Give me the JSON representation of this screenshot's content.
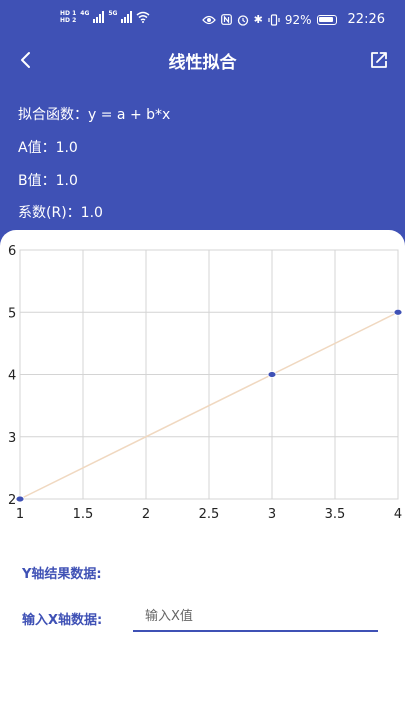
{
  "status_bar": {
    "sim1": "HD 1",
    "sim2": "HD 2",
    "net1": "4G",
    "net2": "5G",
    "battery_percent": "92%",
    "time": "22:26",
    "icons": [
      "wifi-icon",
      "eye-icon",
      "nfc-icon",
      "alarm-icon",
      "bluetooth-icon",
      "vibrate-icon",
      "battery-icon"
    ]
  },
  "header": {
    "title": "线性拟合",
    "back_icon": "chevron-left-icon",
    "share_icon": "share-export-icon"
  },
  "info": {
    "function_label": "拟合函数：",
    "function_value": "y = a + b*x",
    "a_label": "A值：",
    "a_value": "1.0",
    "b_label": "B值：",
    "b_value": "1.0",
    "r_label": "系数(R)：",
    "r_value": "1.0"
  },
  "chart_data": {
    "type": "scatter",
    "x": [
      1,
      3,
      4
    ],
    "y": [
      2,
      4,
      5
    ],
    "fit_line": {
      "x": [
        1,
        4
      ],
      "y": [
        2,
        5
      ]
    },
    "xlim": [
      1,
      4
    ],
    "ylim": [
      2,
      6
    ],
    "x_ticks": [
      "1",
      "1.5",
      "2",
      "2.5",
      "3",
      "3.5",
      "4"
    ],
    "y_ticks": [
      "2",
      "3",
      "4",
      "5",
      "6"
    ],
    "grid": true,
    "colors": {
      "points": "#3f51b5",
      "fit_line": "#f0d8c0",
      "grid": "#d4d4d4"
    }
  },
  "form": {
    "y_result_label": "Y轴结果数据:",
    "x_input_label": "输入X轴数据:",
    "x_input_placeholder": "输入X值",
    "x_input_value": ""
  },
  "colors": {
    "primary": "#3f51b5",
    "background": "#ffffff"
  }
}
